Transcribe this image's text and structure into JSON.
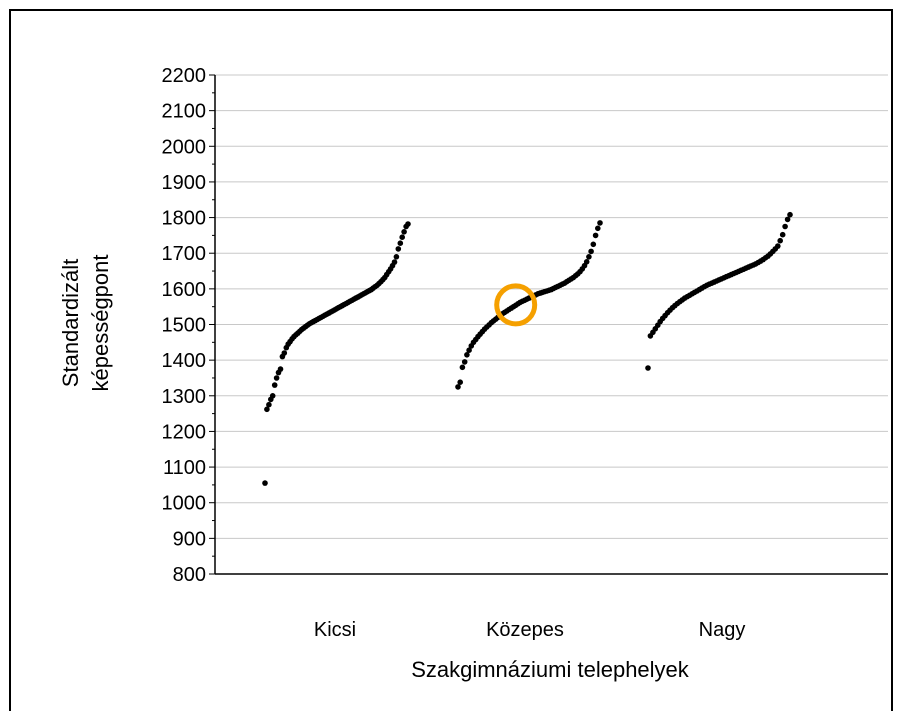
{
  "chart_data": {
    "type": "scatter",
    "title": "",
    "xlabel": "Szakgimnáziumi telephelyek",
    "ylabel_lines": [
      "Standardizált",
      "képességpont"
    ],
    "categories": [
      "Kicsi",
      "Közepes",
      "Nagy"
    ],
    "ylim": [
      800,
      2200
    ],
    "ytick_step": 100,
    "yticks": [
      "800",
      "900",
      "1000",
      "1100",
      "1200",
      "1300",
      "1400",
      "1500",
      "1600",
      "1700",
      "1800",
      "1900",
      "2000",
      "2100",
      "2200"
    ],
    "grid": true,
    "legend": "none",
    "series": [
      {
        "category": "Kicsi",
        "values": [
          1055,
          1262,
          1275,
          1290,
          1300,
          1330,
          1350,
          1365,
          1375,
          1410,
          1420,
          1435,
          1445,
          1452,
          1460,
          1466,
          1471,
          1476,
          1481,
          1486,
          1490,
          1494,
          1498,
          1502,
          1505,
          1508,
          1511,
          1514,
          1517,
          1520,
          1523,
          1526,
          1529,
          1532,
          1535,
          1538,
          1541,
          1544,
          1547,
          1550,
          1553,
          1556,
          1559,
          1562,
          1565,
          1568,
          1571,
          1574,
          1577,
          1580,
          1583,
          1586,
          1589,
          1592,
          1595,
          1598,
          1602,
          1606,
          1610,
          1615,
          1620,
          1626,
          1632,
          1640,
          1648,
          1656,
          1665,
          1675,
          1690,
          1712,
          1728,
          1745,
          1760,
          1775,
          1782
        ]
      },
      {
        "category": "Közepes",
        "values": [
          1325,
          1338,
          1380,
          1395,
          1415,
          1428,
          1440,
          1450,
          1458,
          1466,
          1473,
          1480,
          1487,
          1493,
          1499,
          1505,
          1510,
          1515,
          1520,
          1525,
          1530,
          1534,
          1538,
          1542,
          1546,
          1550,
          1554,
          1558,
          1562,
          1565,
          1568,
          1571,
          1574,
          1577,
          1580,
          1583,
          1586,
          1588,
          1590,
          1592,
          1594,
          1596,
          1598,
          1601,
          1604,
          1607,
          1610,
          1613,
          1616,
          1620,
          1624,
          1628,
          1632,
          1637,
          1642,
          1648,
          1656,
          1665,
          1676,
          1690,
          1705,
          1725,
          1750,
          1770,
          1785
        ]
      },
      {
        "category": "Nagy",
        "values": [
          1378,
          1468,
          1478,
          1488,
          1498,
          1508,
          1517,
          1525,
          1533,
          1540,
          1547,
          1553,
          1559,
          1564,
          1569,
          1574,
          1578,
          1582,
          1586,
          1590,
          1594,
          1598,
          1602,
          1606,
          1610,
          1613,
          1616,
          1619,
          1622,
          1625,
          1628,
          1631,
          1634,
          1637,
          1640,
          1643,
          1646,
          1649,
          1652,
          1655,
          1658,
          1661,
          1664,
          1667,
          1670,
          1674,
          1678,
          1682,
          1687,
          1692,
          1698,
          1705,
          1712,
          1720,
          1735,
          1752,
          1775,
          1795,
          1808
        ]
      }
    ],
    "annotations": [
      {
        "type": "circle",
        "category": "Közepes",
        "value": 1555,
        "color": "#f5a000"
      }
    ],
    "point_color": "#000000"
  }
}
